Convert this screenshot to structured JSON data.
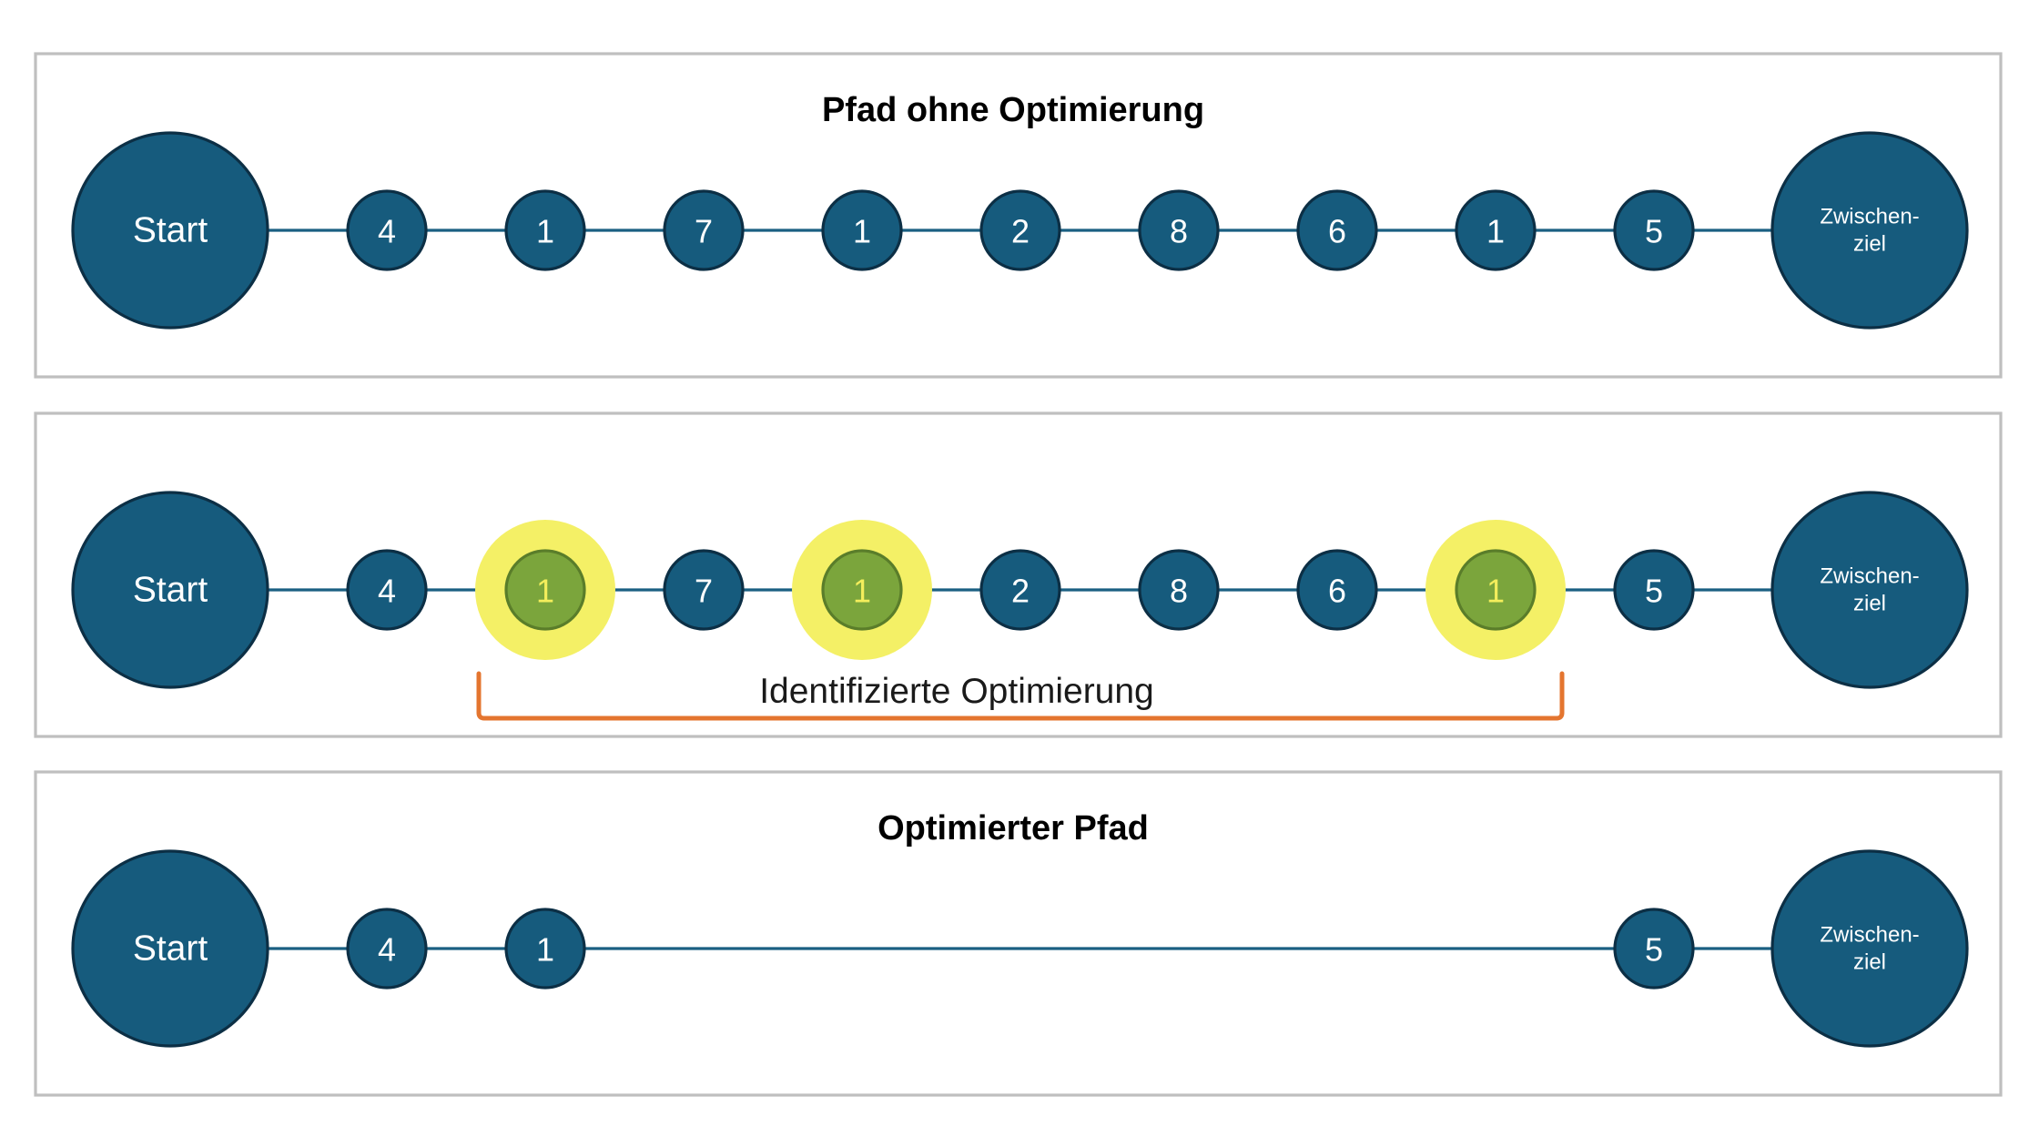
{
  "colors": {
    "node_fill": "#165b7d",
    "node_stroke": "#0c2f45",
    "edge": "#1a5f82",
    "highlight_halo": "#f4f066",
    "highlight_node": "#7ba53c",
    "highlight_text": "#f4ee5c",
    "bracket": "#e4752f",
    "panel_border": "#bfbfbf"
  },
  "panels": [
    {
      "title": "Pfad ohne Optimierung",
      "start": "Start",
      "end": [
        "Zwischen-",
        "ziel"
      ],
      "nodes": [
        {
          "label": "4",
          "slot": 0
        },
        {
          "label": "1",
          "slot": 1
        },
        {
          "label": "7",
          "slot": 2
        },
        {
          "label": "1",
          "slot": 3
        },
        {
          "label": "2",
          "slot": 4
        },
        {
          "label": "8",
          "slot": 5
        },
        {
          "label": "6",
          "slot": 6
        },
        {
          "label": "1",
          "slot": 7
        },
        {
          "label": "5",
          "slot": 8
        }
      ]
    },
    {
      "title": "",
      "start": "Start",
      "end": [
        "Zwischen-",
        "ziel"
      ],
      "nodes": [
        {
          "label": "4",
          "slot": 0
        },
        {
          "label": "1",
          "slot": 1,
          "highlighted": true
        },
        {
          "label": "7",
          "slot": 2
        },
        {
          "label": "1",
          "slot": 3,
          "highlighted": true
        },
        {
          "label": "2",
          "slot": 4
        },
        {
          "label": "8",
          "slot": 5
        },
        {
          "label": "6",
          "slot": 6
        },
        {
          "label": "1",
          "slot": 7,
          "highlighted": true
        },
        {
          "label": "5",
          "slot": 8
        }
      ],
      "bracket": {
        "label": "Identifizierte Optimierung",
        "from_slot": 1,
        "to_slot": 7
      }
    },
    {
      "title": "Optimierter Pfad",
      "start": "Start",
      "end": [
        "Zwischen-",
        "ziel"
      ],
      "nodes": [
        {
          "label": "4",
          "slot": 0
        },
        {
          "label": "1",
          "slot": 1
        },
        {
          "label": "5",
          "slot": 8
        }
      ]
    }
  ]
}
